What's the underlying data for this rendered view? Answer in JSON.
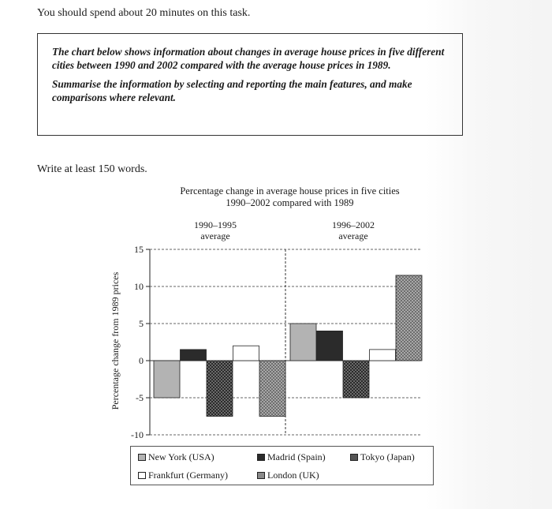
{
  "intro": "You should spend about 20 minutes on this task.",
  "task": {
    "paragraph1": "The chart below shows information about changes in average house prices in five different cities between 1990 and 2002 compared with the average house prices in 1989.",
    "paragraph2": "Summarise the information by selecting and reporting the main features, and make comparisons where relevant."
  },
  "word_instruction": "Write at least 150 words.",
  "chart_data": {
    "type": "bar",
    "title": "Percentage change in average house prices in five cities",
    "subtitle": "1990–2002 compared with 1989",
    "ylabel": "Percentage change from 1989 prices",
    "ylim": [
      -10,
      15
    ],
    "yticks": [
      "15",
      "10",
      "5",
      "0",
      "-5",
      "-10"
    ],
    "categories": [
      "1990–1995 average",
      "1996–2002 average"
    ],
    "category_labels": [
      {
        "line1": "1990–1995",
        "line2": "average"
      },
      {
        "line1": "1996–2002",
        "line2": "average"
      }
    ],
    "series": [
      {
        "name": "New York (USA)",
        "values": [
          -5,
          5
        ],
        "color": "#b3b3b3"
      },
      {
        "name": "Madrid (Spain)",
        "values": [
          1.5,
          4
        ],
        "color": "#2b2b2b"
      },
      {
        "name": "Tokyo (Japan)",
        "values": [
          -7.5,
          -5
        ],
        "color": "#555555"
      },
      {
        "name": "Frankfurt (Germany)",
        "values": [
          2,
          1.5
        ],
        "color": "#ffffff"
      },
      {
        "name": "London (UK)",
        "values": [
          -7.5,
          11.5
        ],
        "color": "#8a8a8a"
      }
    ],
    "grid": true,
    "legend_position": "bottom"
  }
}
